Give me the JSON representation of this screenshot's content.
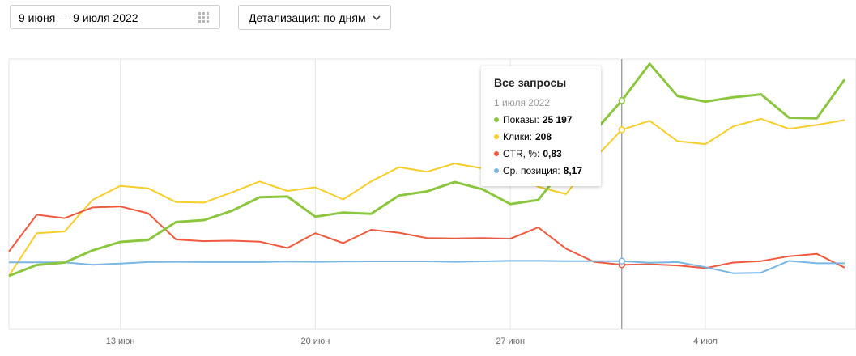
{
  "controls": {
    "date_range": "9 июня — 9 июля 2022",
    "detail_label": "Детализация: по дням"
  },
  "tooltip": {
    "title": "Все запросы",
    "date": "1 июля 2022",
    "rows": [
      {
        "label": "Показы:",
        "value": "25 197",
        "color": "#8cc63f"
      },
      {
        "label": "Клики:",
        "value": "208",
        "color": "#f7cd2a"
      },
      {
        "label": "CTR, %:",
        "value": "0,83",
        "color": "#f05a3c"
      },
      {
        "label": "Ср. позиция:",
        "value": "8,17",
        "color": "#7ab6e2"
      }
    ]
  },
  "chart_data": {
    "type": "line",
    "x_ticks": [
      "13 июн",
      "20 июн",
      "27 июн",
      "4 июл"
    ],
    "x": [
      "9 июн",
      "10 июн",
      "11 июн",
      "12 июн",
      "13 июн",
      "14 июн",
      "15 июн",
      "16 июн",
      "17 июн",
      "18 июн",
      "19 июн",
      "20 июн",
      "21 июн",
      "22 июн",
      "23 июн",
      "24 июн",
      "25 июн",
      "26 июн",
      "27 июн",
      "28 июн",
      "29 июн",
      "30 июн",
      "1 июл",
      "2 июл",
      "3 июл",
      "4 июл",
      "5 июл",
      "6 июл",
      "7 июл",
      "8 июл",
      "9 июл"
    ],
    "highlight_x": "1 июл",
    "y_axis_visible": false,
    "grid": true,
    "series": [
      {
        "name": "Показы",
        "color": "#8cc63f",
        "width": 3,
        "values": [
          0,
          4.5,
          5.5,
          10.5,
          14,
          14.8,
          22.2,
          23,
          26.8,
          32.4,
          32.7,
          24.4,
          26.1,
          25.6,
          33.1,
          34.8,
          38.7,
          35.7,
          29.6,
          31.3,
          45.6,
          59.3,
          72.2,
          87.4,
          74.1,
          71.8,
          73.6,
          74.8,
          65.2,
          64.9,
          80.9
        ]
      },
      {
        "name": "Клики",
        "color": "#f7cd2a",
        "width": 2,
        "values": [
          0,
          17.6,
          18.3,
          31.3,
          37.1,
          36.1,
          30.4,
          30.2,
          34.4,
          38.9,
          35.0,
          36.5,
          31.5,
          38.9,
          44.8,
          42.9,
          46.3,
          44.3,
          43.0,
          36.7,
          33.7,
          48.2,
          60.2,
          63.9,
          55.5,
          54.3,
          61.6,
          64.7,
          60.6,
          62.2,
          64.2
        ]
      },
      {
        "name": "CTR, %",
        "color": "#f05a3c",
        "width": 2,
        "values": [
          10.0,
          25.2,
          23.8,
          28.2,
          28.6,
          25.8,
          15.0,
          14.3,
          14.5,
          14.1,
          11.5,
          17.6,
          13.5,
          19.0,
          17.8,
          15.6,
          15.4,
          15.6,
          15.3,
          20.0,
          11.2,
          5.8,
          4.6,
          4.8,
          4.3,
          3.2,
          5.5,
          6.1,
          8.1,
          9.1,
          3.4
        ]
      },
      {
        "name": "Ср. позиция",
        "color": "#7ab6e2",
        "width": 2,
        "values": [
          5.6,
          5.6,
          5.6,
          4.6,
          5.1,
          5.7,
          5.8,
          5.7,
          5.7,
          5.7,
          5.9,
          5.8,
          5.9,
          6.0,
          6.0,
          6.0,
          5.8,
          6.0,
          6.2,
          6.2,
          6.1,
          6.1,
          6.1,
          5.4,
          5.7,
          3.6,
          1.1,
          1.3,
          6.2,
          5.2,
          5.2
        ]
      }
    ]
  }
}
